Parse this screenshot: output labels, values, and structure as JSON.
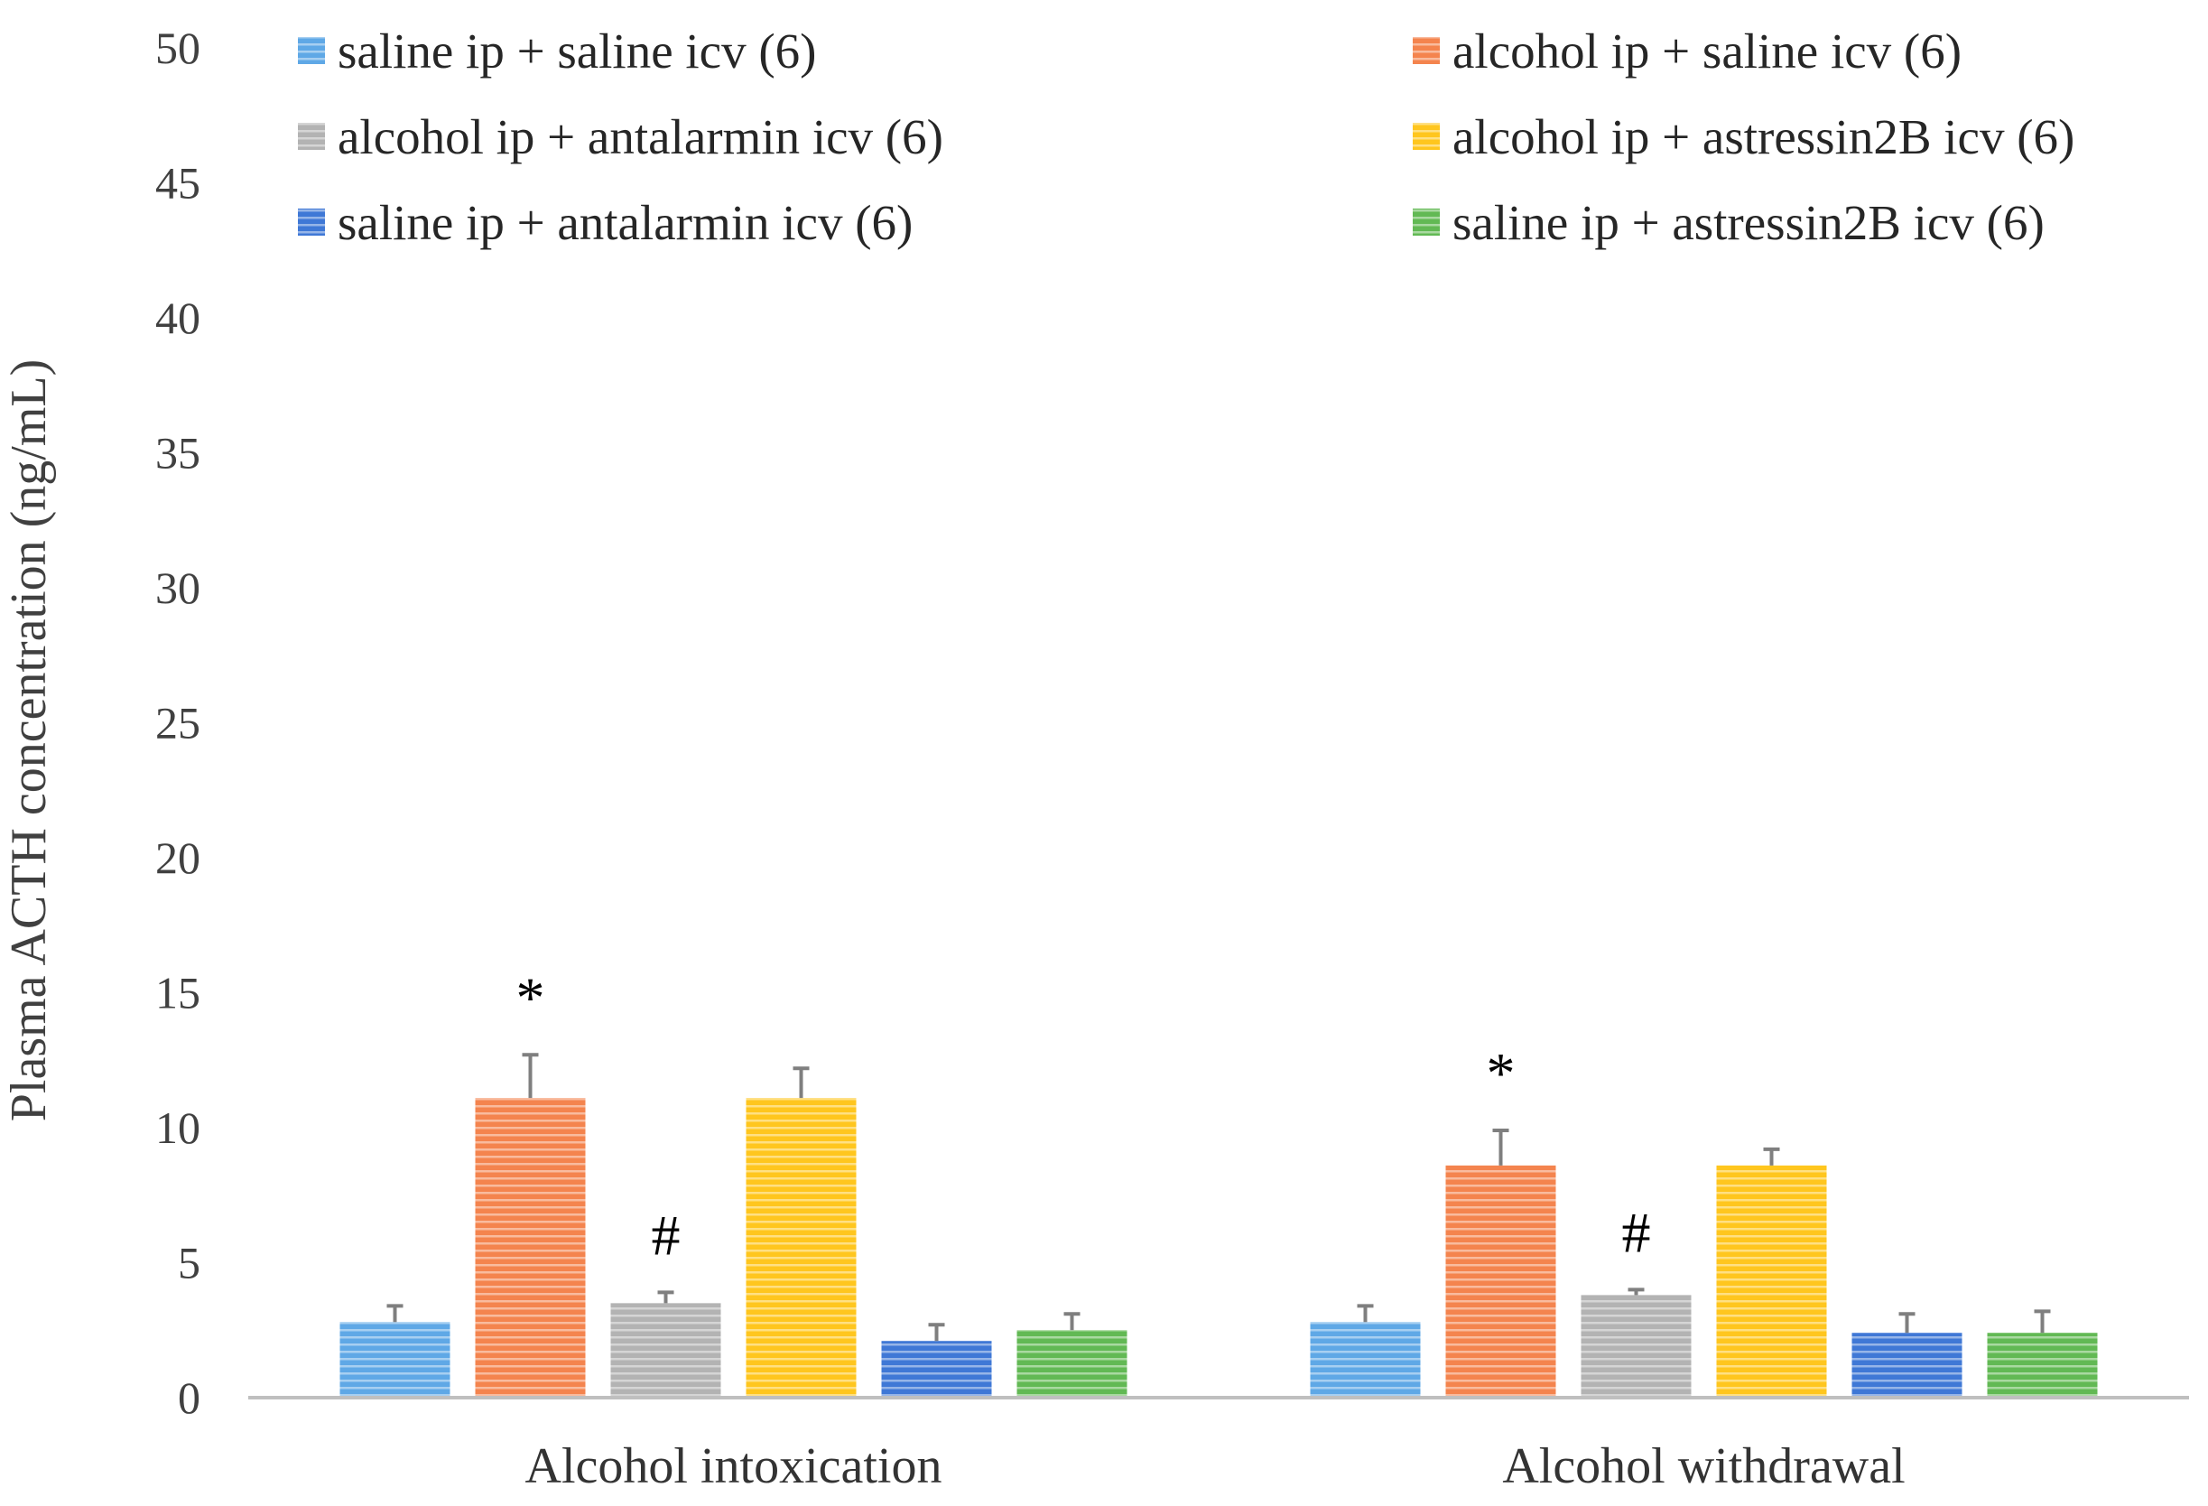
{
  "chart_data": {
    "type": "bar",
    "title": "",
    "xlabel": "",
    "ylabel": "Plasma ACTH concentration (ng/mL)",
    "ylim": [
      0,
      50
    ],
    "yticks": [
      0,
      5,
      10,
      15,
      20,
      25,
      30,
      35,
      40,
      45,
      50
    ],
    "ytick_labels": [
      "0",
      "5",
      "10",
      "15",
      "20",
      "25",
      "30",
      "35",
      "40",
      "45",
      "50"
    ],
    "grid": false,
    "legend_position": "top",
    "categories": [
      "Alcohol intoxication",
      "Alcohol withdrawal"
    ],
    "series": [
      {
        "name": "saline ip + saline icv (6)",
        "color": "#5fa8e6",
        "values": [
          2.8,
          2.8
        ],
        "errors": [
          0.6,
          0.6
        ],
        "annotations": [
          "",
          ""
        ]
      },
      {
        "name": "alcohol ip + saline icv (6)",
        "color": "#f4844e",
        "values": [
          11.1,
          8.6
        ],
        "errors": [
          1.6,
          1.3
        ],
        "annotations": [
          "*",
          "*"
        ]
      },
      {
        "name": "alcohol ip + antalarmin icv (6)",
        "color": "#b3b3b3",
        "values": [
          3.5,
          3.8
        ],
        "errors": [
          0.4,
          0.2
        ],
        "annotations": [
          "#",
          "#"
        ]
      },
      {
        "name": "alcohol ip + astressin2B icv (6)",
        "color": "#ffc61e",
        "values": [
          11.1,
          8.6
        ],
        "errors": [
          1.1,
          0.6
        ],
        "annotations": [
          "",
          ""
        ]
      },
      {
        "name": "saline ip + antalarmin icv (6)",
        "color": "#3f78d6",
        "values": [
          2.1,
          2.4
        ],
        "errors": [
          0.6,
          0.7
        ],
        "annotations": [
          "",
          ""
        ]
      },
      {
        "name": "saline ip + astressin2B icv (6)",
        "color": "#62b954",
        "values": [
          2.5,
          2.4
        ],
        "errors": [
          0.6,
          0.8
        ],
        "annotations": [
          "",
          ""
        ]
      }
    ]
  }
}
